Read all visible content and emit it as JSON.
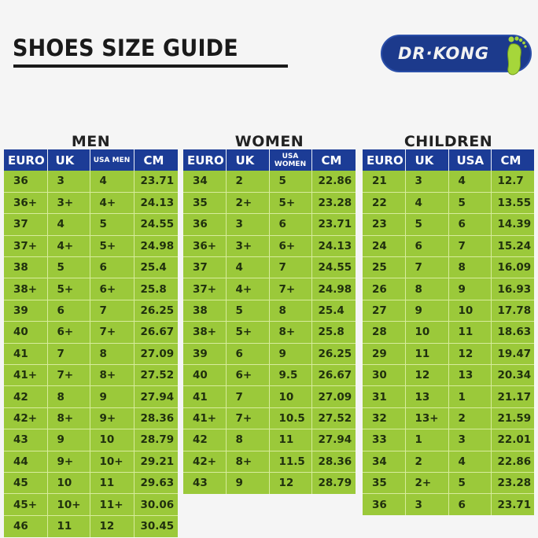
{
  "header": {
    "title": "SHOES SIZE GUIDE",
    "logo_text": "DR·KONG",
    "logo_icon": "footprint-icon",
    "colors": {
      "header_blue": "#1c3c96",
      "cell_green": "#9bc93a",
      "logo_foot_green": "#a6d63a"
    }
  },
  "men": {
    "title": "MEN",
    "columns": [
      "EURO",
      "UK",
      "USA MEN",
      "CM"
    ],
    "rows": [
      [
        "36",
        "3",
        "4",
        "23.71"
      ],
      [
        "36+",
        "3+",
        "4+",
        "24.13"
      ],
      [
        "37",
        "4",
        "5",
        "24.55"
      ],
      [
        "37+",
        "4+",
        "5+",
        "24.98"
      ],
      [
        "38",
        "5",
        "6",
        "25.4"
      ],
      [
        "38+",
        "5+",
        "6+",
        "25.8"
      ],
      [
        "39",
        "6",
        "7",
        "26.25"
      ],
      [
        "40",
        "6+",
        "7+",
        "26.67"
      ],
      [
        "41",
        "7",
        "8",
        "27.09"
      ],
      [
        "41+",
        "7+",
        "8+",
        "27.52"
      ],
      [
        "42",
        "8",
        "9",
        "27.94"
      ],
      [
        "42+",
        "8+",
        "9+",
        "28.36"
      ],
      [
        "43",
        "9",
        "10",
        "28.79"
      ],
      [
        "44",
        "9+",
        "10+",
        "29.21"
      ],
      [
        "45",
        "10",
        "11",
        "29.63"
      ],
      [
        "45+",
        "10+",
        "11+",
        "30.06"
      ],
      [
        "46",
        "11",
        "12",
        "30.45"
      ]
    ]
  },
  "women": {
    "title": "WOMEN",
    "columns": [
      "EURO",
      "UK",
      "USA WOMEN",
      "CM"
    ],
    "column_lines": {
      "usa_line1": "USA",
      "usa_line2": "WOMEN"
    },
    "rows": [
      [
        "34",
        "2",
        "5",
        "22.86"
      ],
      [
        "35",
        "2+",
        "5+",
        "23.28"
      ],
      [
        "36",
        "3",
        "6",
        "23.71"
      ],
      [
        "36+",
        "3+",
        "6+",
        "24.13"
      ],
      [
        "37",
        "4",
        "7",
        "24.55"
      ],
      [
        "37+",
        "4+",
        "7+",
        "24.98"
      ],
      [
        "38",
        "5",
        "8",
        "25.4"
      ],
      [
        "38+",
        "5+",
        "8+",
        "25.8"
      ],
      [
        "39",
        "6",
        "9",
        "26.25"
      ],
      [
        "40",
        "6+",
        "9.5",
        "26.67"
      ],
      [
        "41",
        "7",
        "10",
        "27.09"
      ],
      [
        "41+",
        "7+",
        "10.5",
        "27.52"
      ],
      [
        "42",
        "8",
        "11",
        "27.94"
      ],
      [
        "42+",
        "8+",
        "11.5",
        "28.36"
      ],
      [
        "43",
        "9",
        "12",
        "28.79"
      ]
    ]
  },
  "children": {
    "title": "CHILDREN",
    "columns": [
      "EURO",
      "UK",
      "USA",
      "CM"
    ],
    "rows": [
      [
        "21",
        "3",
        "4",
        "12.7"
      ],
      [
        "22",
        "4",
        "5",
        "13.55"
      ],
      [
        "23",
        "5",
        "6",
        "14.39"
      ],
      [
        "24",
        "6",
        "7",
        "15.24"
      ],
      [
        "25",
        "7",
        "8",
        "16.09"
      ],
      [
        "26",
        "8",
        "9",
        "16.93"
      ],
      [
        "27",
        "9",
        "10",
        "17.78"
      ],
      [
        "28",
        "10",
        "11",
        "18.63"
      ],
      [
        "29",
        "11",
        "12",
        "19.47"
      ],
      [
        "30",
        "12",
        "13",
        "20.34"
      ],
      [
        "31",
        "13",
        "1",
        "21.17"
      ],
      [
        "32",
        "13+",
        "2",
        "21.59"
      ],
      [
        "33",
        "1",
        "3",
        "22.01"
      ],
      [
        "34",
        "2",
        "4",
        "22.86"
      ],
      [
        "35",
        "2+",
        "5",
        "23.28"
      ],
      [
        "36",
        "3",
        "6",
        "23.71"
      ]
    ]
  }
}
